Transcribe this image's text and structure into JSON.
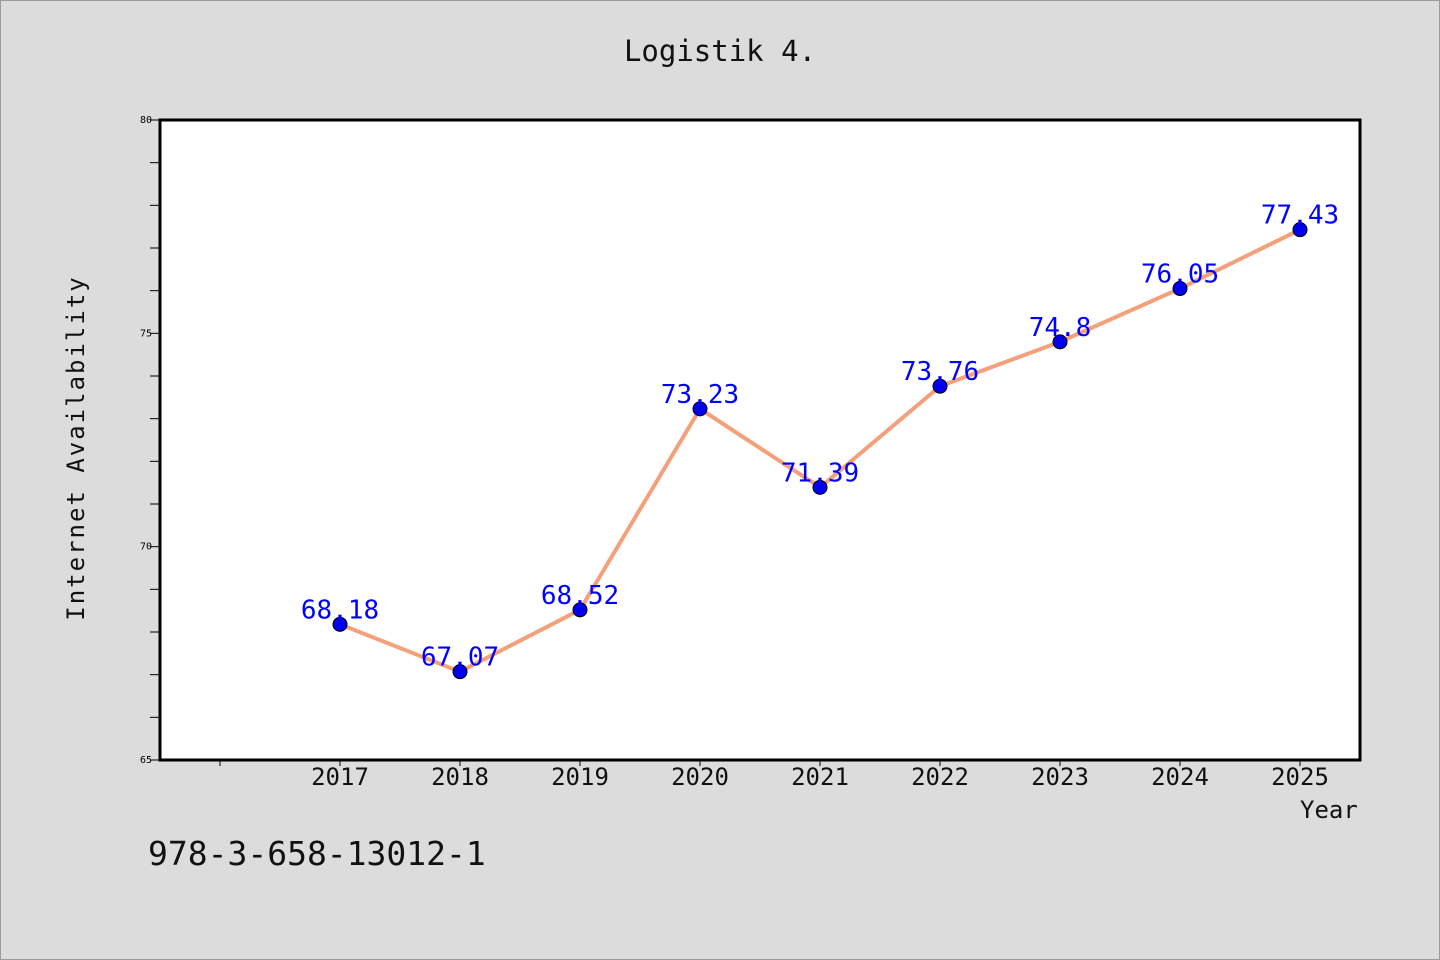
{
  "chart_data": {
    "type": "line",
    "title": "Logistik 4.",
    "xlabel": "Year",
    "ylabel": "Internet Availability",
    "categories": [
      "2017",
      "2018",
      "2019",
      "2020",
      "2021",
      "2022",
      "2023",
      "2024",
      "2025"
    ],
    "series": [
      {
        "values": [
          68.18,
          67.07,
          68.52,
          73.23,
          71.39,
          73.76,
          74.8,
          76.05,
          77.43
        ],
        "data_labels": [
          "68.18",
          "67.07",
          "68.52",
          "73.23",
          "71.39",
          "73.76",
          "74.8",
          "76.05",
          "77.43"
        ]
      }
    ],
    "ylim": [
      65,
      80
    ],
    "y_ticks": [
      "65",
      "70",
      "75",
      "80"
    ],
    "grid": false,
    "line_color": "#f4a07a",
    "marker_color": "#0000ee",
    "label_color": "#0000ff"
  },
  "footer": {
    "isbn": "978-3-658-13012-1"
  }
}
